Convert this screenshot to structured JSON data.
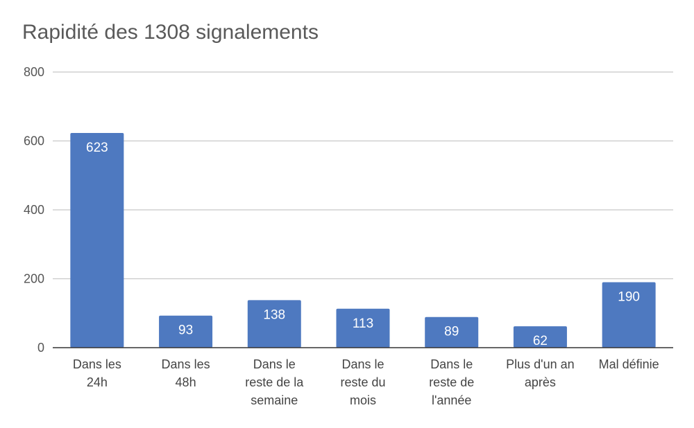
{
  "chart_data": {
    "type": "bar",
    "title": "Rapidité des 1308 signalements",
    "xlabel": "",
    "ylabel": "",
    "categories": [
      [
        "Dans les",
        "24h"
      ],
      [
        "Dans les",
        "48h"
      ],
      [
        "Dans le",
        "reste de la",
        "semaine"
      ],
      [
        "Dans le",
        "reste du",
        "mois"
      ],
      [
        "Dans le",
        "reste de",
        "l'année"
      ],
      [
        "Plus d'un an",
        "après"
      ],
      [
        "Mal définie"
      ]
    ],
    "values": [
      623,
      93,
      138,
      113,
      89,
      62,
      190
    ],
    "data_labels": [
      "623",
      "93",
      "138",
      "113",
      "89",
      "62",
      "190"
    ],
    "ylim": [
      0,
      800
    ],
    "yticks": [
      0,
      200,
      400,
      600,
      800
    ],
    "ytick_labels": [
      "0",
      "200",
      "400",
      "600",
      "800"
    ],
    "grid": true,
    "legend": "none",
    "colors": {
      "bar": "#4e79c0",
      "grid": "#c8c8c8",
      "axis": "#333333"
    }
  }
}
